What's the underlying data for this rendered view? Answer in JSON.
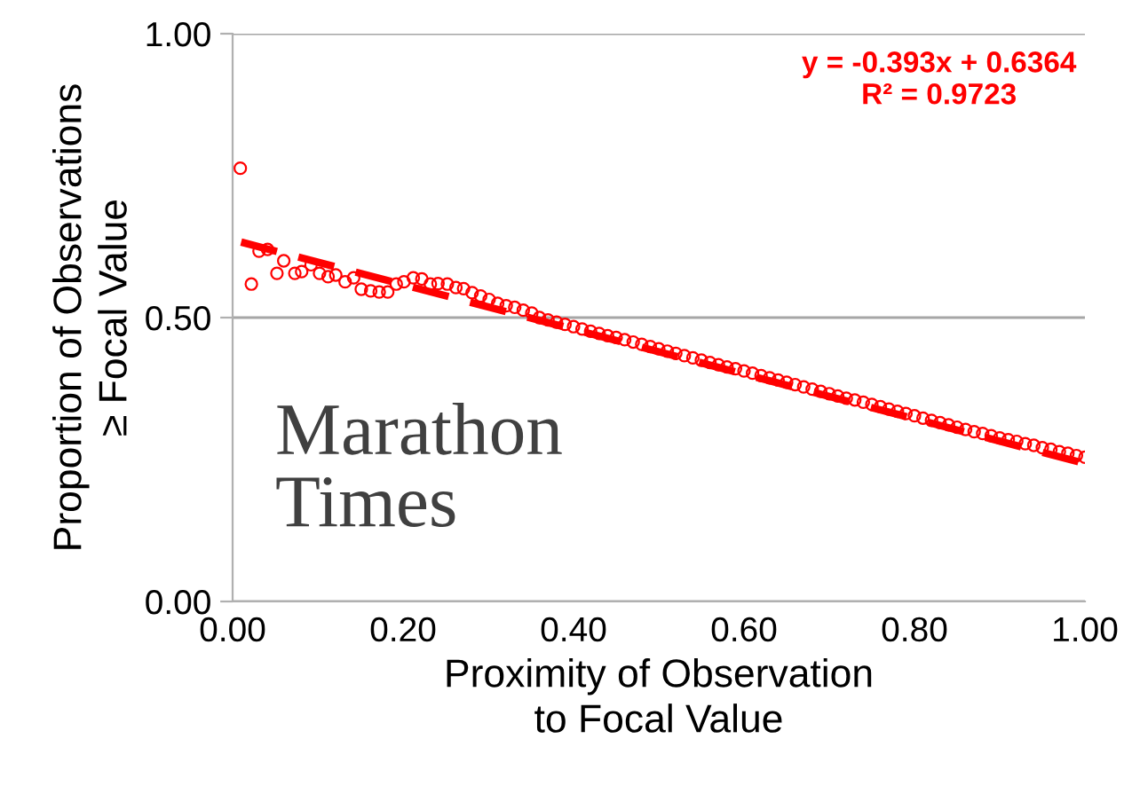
{
  "chart_data": {
    "type": "scatter",
    "xlabel": "Proximity of Observation\nto Focal Value",
    "ylabel": "Proportion of Observations\n≥ Focal Value",
    "annotations": [
      "y = -0.393x + 0.6364\nR² = 0.9723",
      "Marathon\nTimes"
    ],
    "xlim": [
      0,
      1
    ],
    "ylim": [
      0,
      1
    ],
    "xticks": [
      {
        "value": 0,
        "label": "0.00"
      },
      {
        "value": 0.2,
        "label": "0.20"
      },
      {
        "value": 0.4,
        "label": "0.40"
      },
      {
        "value": 0.6,
        "label": "0.60"
      },
      {
        "value": 0.8,
        "label": "0.80"
      },
      {
        "value": 1,
        "label": "1.00"
      }
    ],
    "yticks": [
      {
        "value": 0,
        "label": "0.00"
      },
      {
        "value": 0.5,
        "label": "0.50"
      },
      {
        "value": 1,
        "label": "1.00"
      }
    ],
    "grid": "y",
    "marker": "circle",
    "series": [
      {
        "color": "#ff0000",
        "x": [
          0.009,
          0.022,
          0.031,
          0.041,
          0.052,
          0.06,
          0.073,
          0.081,
          0.092,
          0.102,
          0.112,
          0.121,
          0.132,
          0.142,
          0.151,
          0.162,
          0.172,
          0.182,
          0.192,
          0.201,
          0.212,
          0.222,
          0.232,
          0.241,
          0.252,
          0.262,
          0.271,
          0.281,
          0.291,
          0.301,
          0.311,
          0.321,
          0.331,
          0.341,
          0.351,
          0.36,
          0.37,
          0.38,
          0.39,
          0.4,
          0.41,
          0.42,
          0.43,
          0.44,
          0.45,
          0.46,
          0.47,
          0.48,
          0.49,
          0.5,
          0.51,
          0.52,
          0.53,
          0.54,
          0.55,
          0.56,
          0.57,
          0.58,
          0.59,
          0.6,
          0.61,
          0.62,
          0.63,
          0.64,
          0.65,
          0.66,
          0.67,
          0.68,
          0.69,
          0.7,
          0.71,
          0.72,
          0.73,
          0.74,
          0.75,
          0.76,
          0.77,
          0.78,
          0.79,
          0.8,
          0.81,
          0.82,
          0.83,
          0.84,
          0.85,
          0.86,
          0.87,
          0.88,
          0.89,
          0.9,
          0.91,
          0.92,
          0.93,
          0.94,
          0.95,
          0.96,
          0.97,
          0.98,
          0.99,
          1.0
        ],
        "values": [
          0.763,
          0.559,
          0.617,
          0.62,
          0.578,
          0.6,
          0.578,
          0.581,
          0.593,
          0.578,
          0.572,
          0.575,
          0.563,
          0.57,
          0.55,
          0.547,
          0.545,
          0.545,
          0.559,
          0.563,
          0.57,
          0.568,
          0.559,
          0.56,
          0.559,
          0.553,
          0.551,
          0.544,
          0.538,
          0.532,
          0.525,
          0.521,
          0.518,
          0.513,
          0.508,
          0.5,
          0.496,
          0.492,
          0.488,
          0.484,
          0.48,
          0.476,
          0.472,
          0.468,
          0.465,
          0.461,
          0.457,
          0.453,
          0.449,
          0.445,
          0.441,
          0.437,
          0.433,
          0.429,
          0.425,
          0.421,
          0.417,
          0.413,
          0.41,
          0.406,
          0.402,
          0.398,
          0.394,
          0.39,
          0.386,
          0.382,
          0.378,
          0.374,
          0.37,
          0.366,
          0.362,
          0.358,
          0.355,
          0.351,
          0.347,
          0.343,
          0.339,
          0.335,
          0.331,
          0.327,
          0.323,
          0.319,
          0.315,
          0.311,
          0.307,
          0.303,
          0.299,
          0.296,
          0.292,
          0.288,
          0.285,
          0.282,
          0.278,
          0.275,
          0.271,
          0.268,
          0.264,
          0.261,
          0.257,
          0.254
        ]
      },
      {
        "type": "line",
        "color": "#ff0000",
        "line_style": "dashed",
        "marker": "none",
        "x": [
          0.01,
          1.0
        ],
        "values": [
          0.633,
          0.243
        ]
      }
    ]
  }
}
